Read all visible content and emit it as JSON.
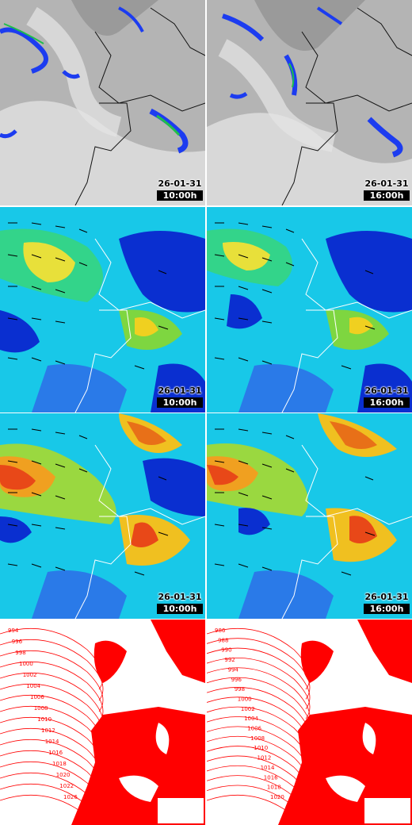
{
  "panels": [
    {
      "row": "satellite",
      "date": "26-01-31",
      "time": "10:00h"
    },
    {
      "row": "satellite",
      "date": "26-01-31",
      "time": "16:00h"
    },
    {
      "row": "wind-low",
      "date": "26-01-31",
      "time": "10:00h"
    },
    {
      "row": "wind-low",
      "date": "26-01-31",
      "time": "16:00h"
    },
    {
      "row": "wind-high",
      "date": "26-01-31",
      "time": "10:00h"
    },
    {
      "row": "wind-high",
      "date": "26-01-31",
      "time": "16:00h"
    },
    {
      "row": "pressure"
    },
    {
      "row": "pressure"
    }
  ],
  "isobars_left": [
    "994",
    "996",
    "998",
    "1000",
    "1002",
    "1004",
    "1006",
    "1008",
    "1010",
    "1012",
    "1014",
    "1016",
    "1018",
    "1020",
    "1022",
    "1026"
  ],
  "isobars_right": [
    "986",
    "988",
    "990",
    "992",
    "994",
    "996",
    "998",
    "1000",
    "1002",
    "1004",
    "1006",
    "1008",
    "1010",
    "1012",
    "1014",
    "1016",
    "1018",
    "1020"
  ],
  "colors": {
    "cloud": "#d4d4d4",
    "rain": "#1c3cf0",
    "wind_calm": "#0a2fd0",
    "wind_mid": "#17d4e6",
    "wind_strong": "#e06010",
    "isobar": "#ff0000",
    "divider": "#ffffff"
  }
}
